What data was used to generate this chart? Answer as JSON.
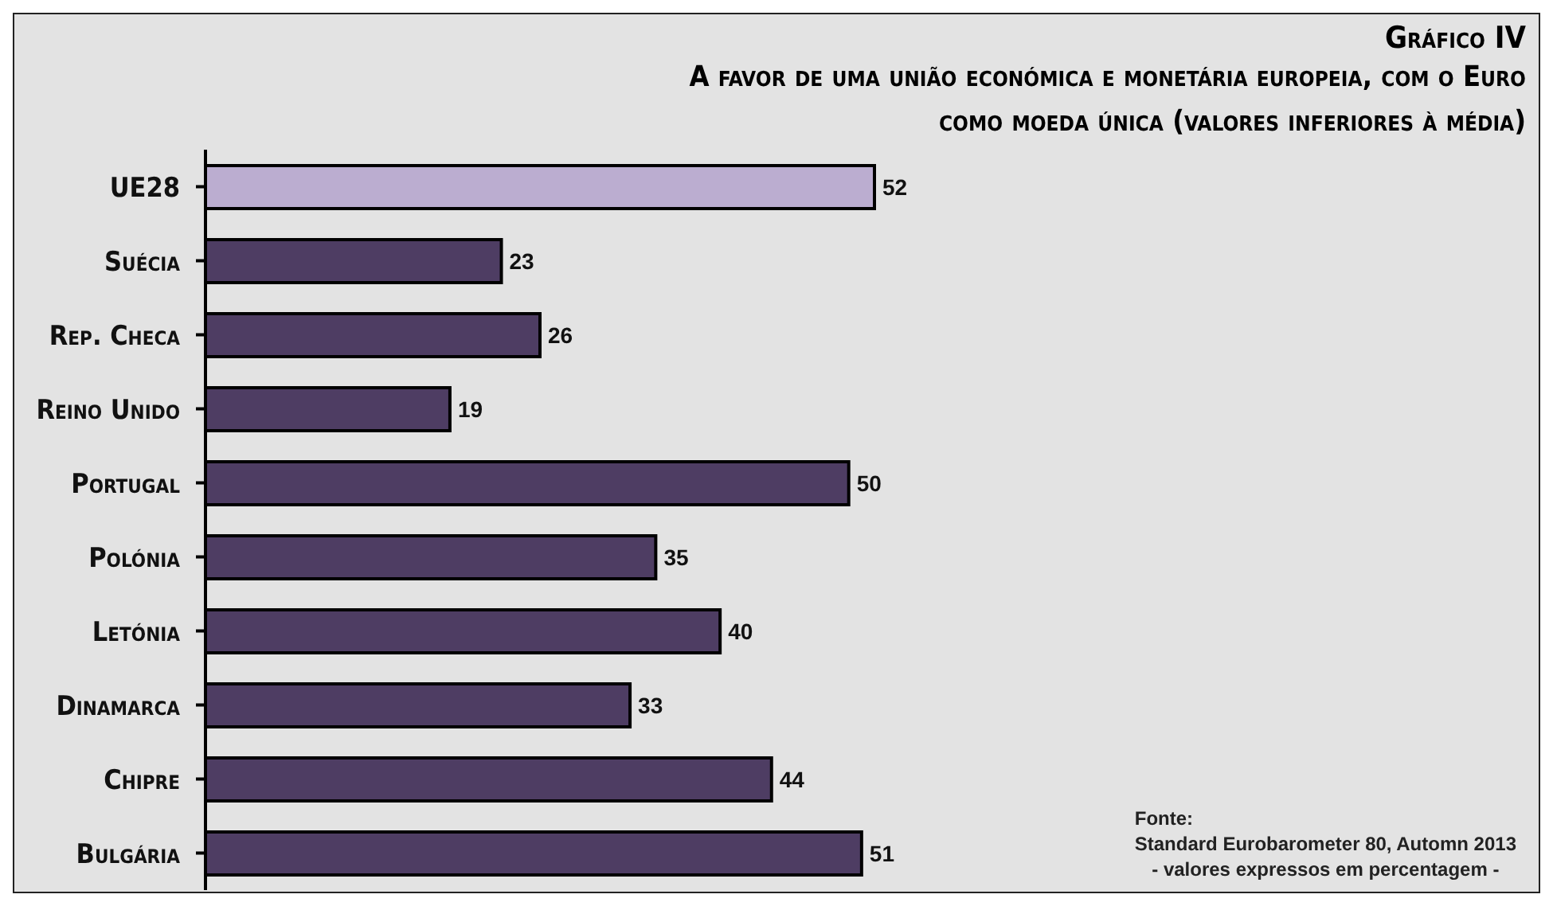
{
  "chart_data": {
    "type": "bar",
    "orientation": "horizontal",
    "title": "Gráfico IV",
    "subtitle": "A favor de uma união económica e monetária europeia, com o Euro como moeda única (valores inferiores à média)",
    "categories": [
      "UE28",
      "Suécia",
      "Rep. Checa",
      "Reino Unido",
      "Portugal",
      "Polónia",
      "Letónia",
      "Dinamarca",
      "Chipre",
      "Bulgária"
    ],
    "values": [
      52,
      23,
      26,
      19,
      50,
      35,
      40,
      33,
      44,
      51
    ],
    "colors": [
      "#bbadd0",
      "#4e3d63",
      "#4e3d63",
      "#4e3d63",
      "#4e3d63",
      "#4e3d63",
      "#4e3d63",
      "#4e3d63",
      "#4e3d63",
      "#4e3d63"
    ],
    "data_labels": true,
    "annotations": [
      "Fonte:",
      "Standard Eurobarometer 80, Automn 2013",
      "- valores expressos em percentagem -"
    ]
  }
}
